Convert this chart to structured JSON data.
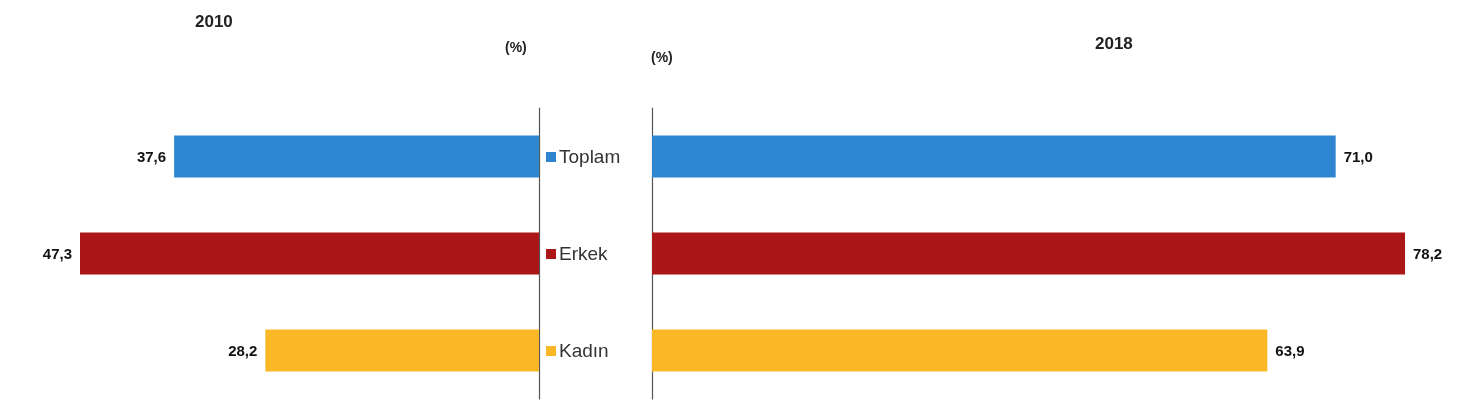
{
  "chart_data": [
    {
      "type": "bar",
      "orientation": "horizontal",
      "title": "2010",
      "xlabel": "(%)",
      "categories": [
        "Toplam",
        "Erkek",
        "Kadın"
      ],
      "values": [
        37.6,
        47.3,
        28.2
      ],
      "value_labels": [
        "37,6",
        "47,3",
        "28,2"
      ],
      "colors": [
        "#2e86d1",
        "#ab1616",
        "#fbb826"
      ],
      "tick_labels": "y",
      "grid": false
    },
    {
      "type": "bar",
      "orientation": "horizontal",
      "title": "2018",
      "xlabel": "(%)",
      "categories": [
        null,
        null,
        null
      ],
      "values": [
        71.0,
        78.2,
        63.9
      ],
      "value_labels": [
        "71,0",
        "78,2",
        "63,9"
      ],
      "colors": [
        "#2e86d1",
        "#ab1616",
        "#fbb826"
      ],
      "tick_labels": false,
      "grid": false
    }
  ]
}
